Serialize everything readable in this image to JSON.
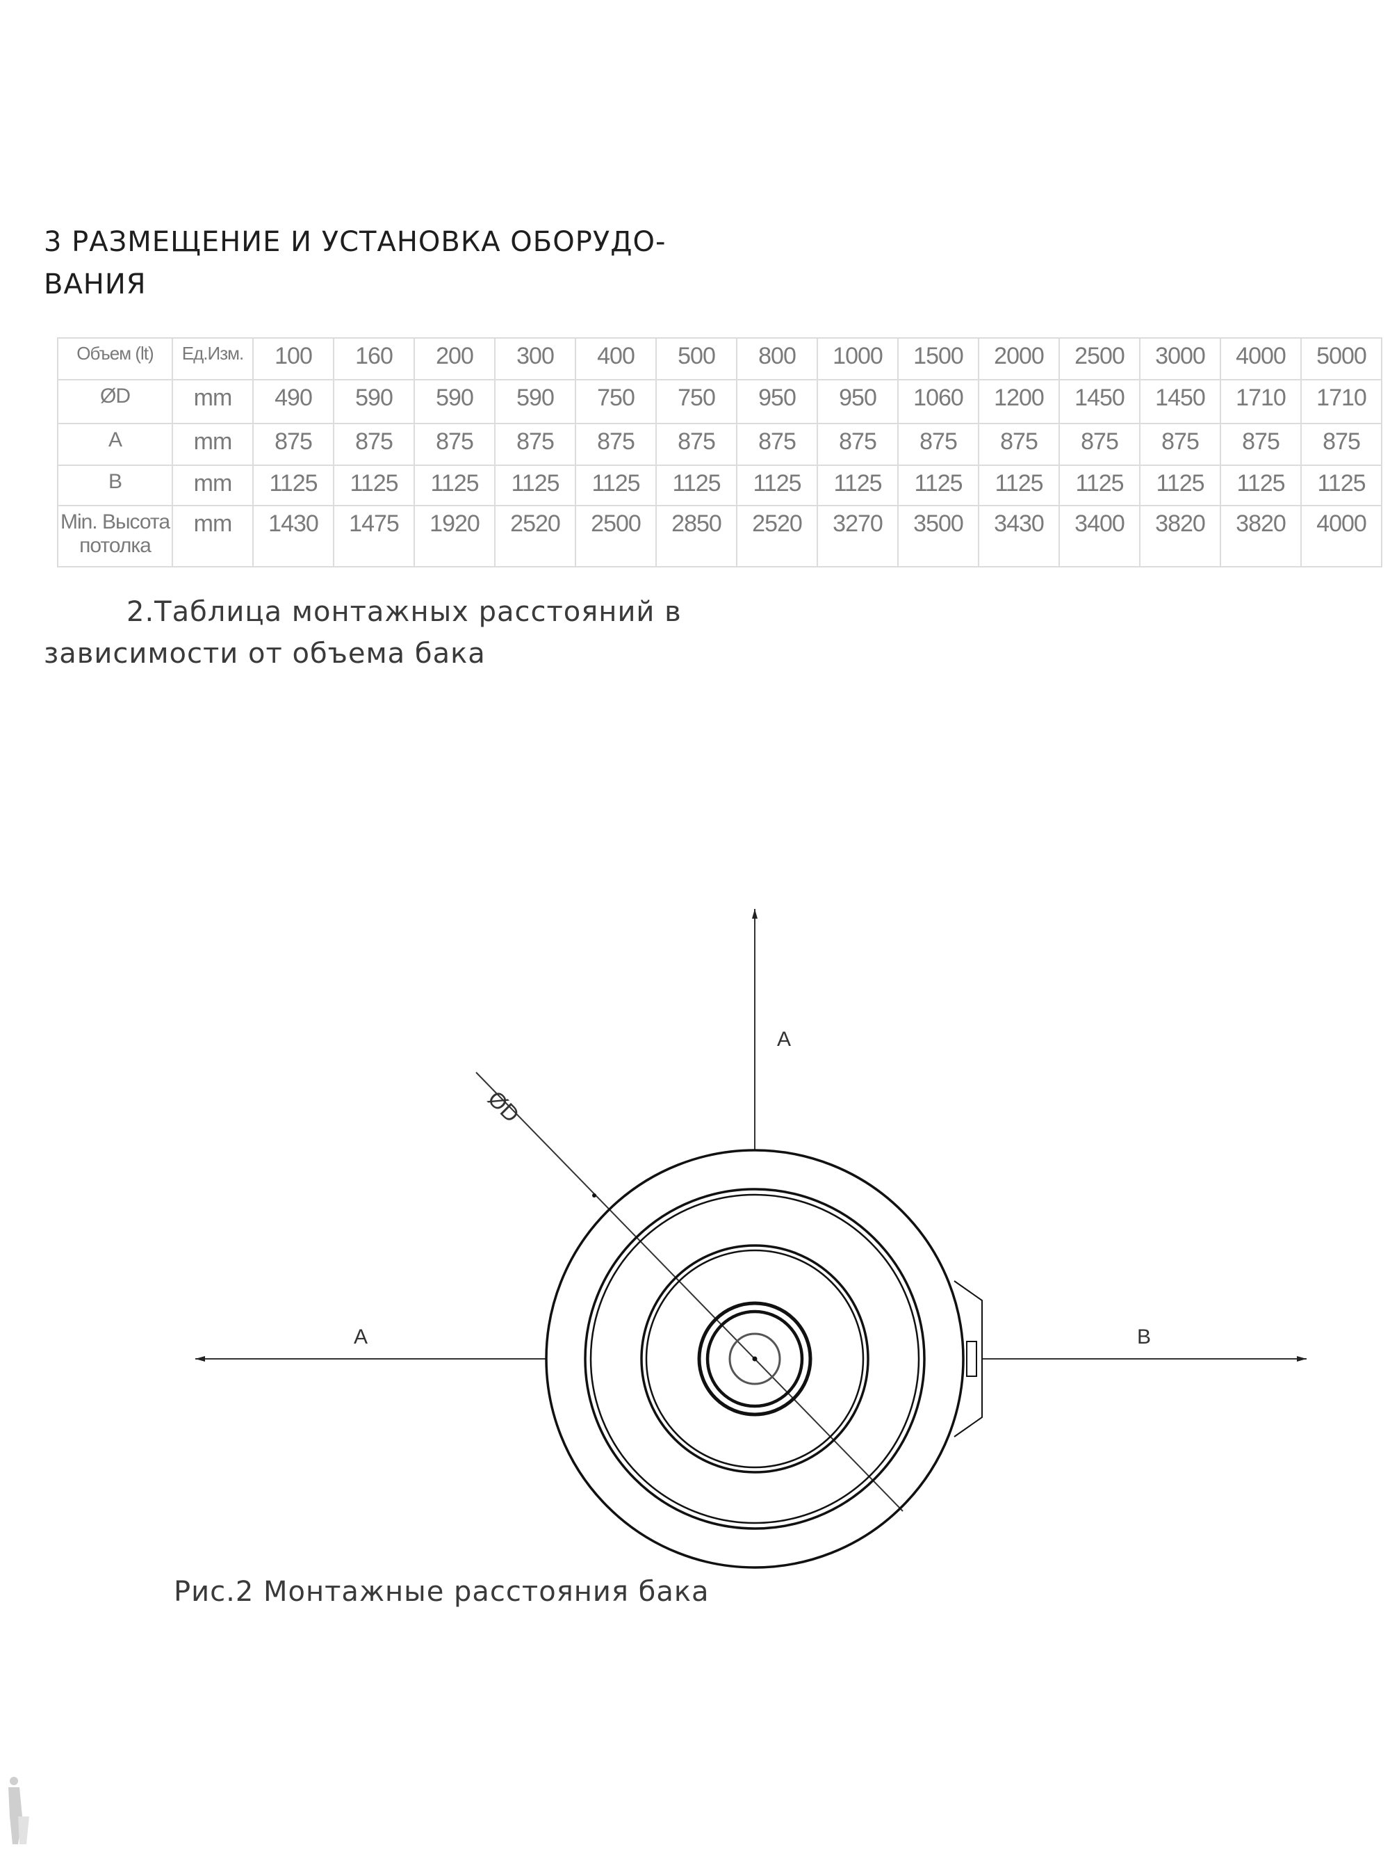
{
  "section_heading": {
    "line1": "3 РАЗМЕЩЕНИЕ И УСТАНОВКА ОБОРУДО-",
    "line2": "ВАНИЯ"
  },
  "table": {
    "header": {
      "label": "Объем (lt)",
      "unit": "Ед.Изм.",
      "values": [
        "100",
        "160",
        "200",
        "300",
        "400",
        "500",
        "800",
        "1000",
        "1500",
        "2000",
        "2500",
        "3000",
        "4000",
        "5000"
      ]
    },
    "rows": [
      {
        "label": "ØD",
        "unit": "mm",
        "values": [
          "490",
          "590",
          "590",
          "590",
          "750",
          "750",
          "950",
          "950",
          "1060",
          "1200",
          "1450",
          "1450",
          "1710",
          "1710"
        ]
      },
      {
        "label": "A",
        "unit": "mm",
        "values": [
          "875",
          "875",
          "875",
          "875",
          "875",
          "875",
          "875",
          "875",
          "875",
          "875",
          "875",
          "875",
          "875",
          "875"
        ]
      },
      {
        "label": "B",
        "unit": "mm",
        "values": [
          "1125",
          "1125",
          "1125",
          "1125",
          "1125",
          "1125",
          "1125",
          "1125",
          "1125",
          "1125",
          "1125",
          "1125",
          "1125",
          "1125"
        ]
      },
      {
        "label": "Min. Высота потолка",
        "unit": "mm",
        "values": [
          "1430",
          "1475",
          "1920",
          "2520",
          "2500",
          "2850",
          "2520",
          "3270",
          "3500",
          "3430",
          "3400",
          "3820",
          "3820",
          "4000"
        ]
      }
    ]
  },
  "table_caption": {
    "line1": "2.Таблица монтажных расстояний в",
    "line2": "зависимости от объема бака"
  },
  "diagram": {
    "label_a_top": "A",
    "label_a_left": "A",
    "label_b": "B",
    "label_diameter": "ØD"
  },
  "figure_caption": "Рис.2  Монтажные расстояния бака",
  "colors": {
    "text": "#1e1e1e",
    "table_text": "#7a7a7a",
    "table_border": "#dcdcdc",
    "drawing": "#111111"
  }
}
